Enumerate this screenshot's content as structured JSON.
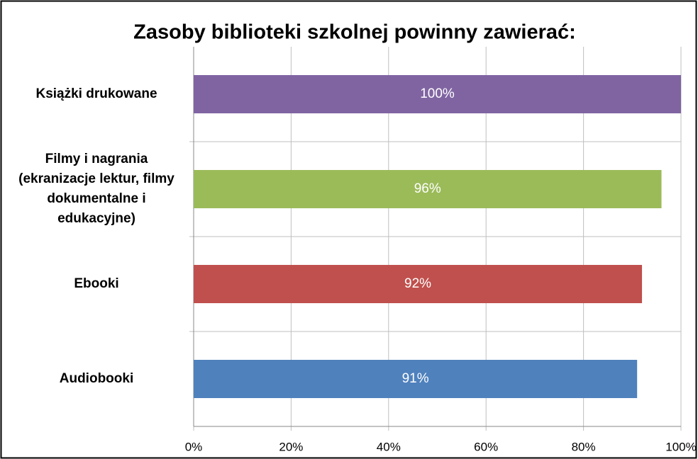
{
  "chart_data": {
    "type": "barh",
    "title": "Zasoby biblioteki szkolnej powinny zawierać:",
    "categories": [
      "Książki drukowane",
      "Filmy i nagrania (ekranizacje lektur, filmy dokumentalne i edukacyjne)",
      "Ebooki",
      "Audiobooki"
    ],
    "values": [
      100,
      96,
      92,
      91
    ],
    "value_labels": [
      "100%",
      "96%",
      "92%",
      "91%"
    ],
    "colors": [
      "#8064a2",
      "#9bbb59",
      "#c0504d",
      "#4f81bd"
    ],
    "xlim": [
      0,
      100
    ],
    "xticks": [
      {
        "value": 0,
        "label": "0%"
      },
      {
        "value": 20,
        "label": "20%"
      },
      {
        "value": 40,
        "label": "40%"
      },
      {
        "value": 60,
        "label": "60%"
      },
      {
        "value": 80,
        "label": "80%"
      },
      {
        "value": 100,
        "label": "100%"
      }
    ],
    "grid": true
  }
}
